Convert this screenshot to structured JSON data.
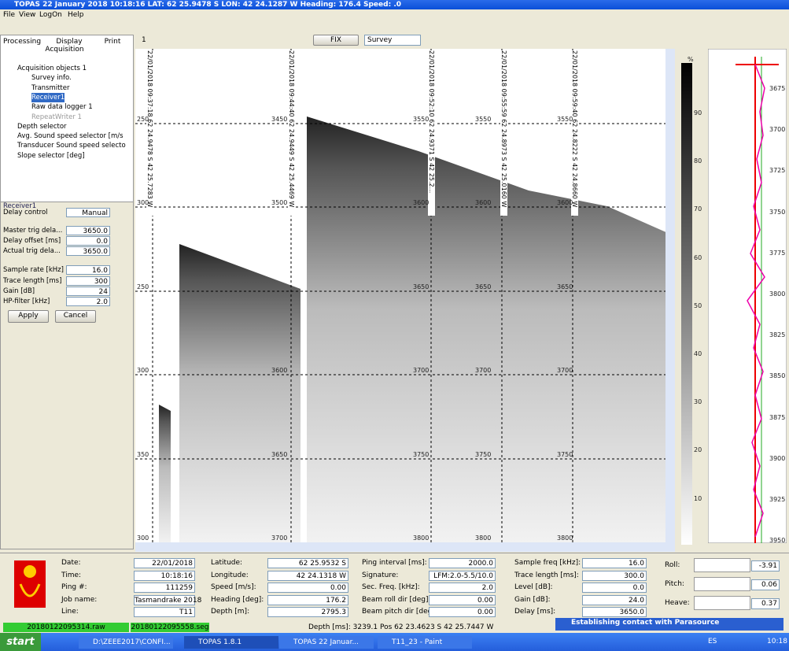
{
  "window": {
    "title": "TOPAS   22 January 2018  10:18:16   LAT: 62 25.9478 S   LON: 42 24.1287 W   Heading: 176.4   Speed: .0",
    "menu": [
      "File",
      "View",
      "LogOn",
      "Help"
    ]
  },
  "left_panel": {
    "tabs": [
      "Processing",
      "Display",
      "Print",
      "Acquisition"
    ],
    "tree": [
      "Acquisition objects 1",
      "Survey info.",
      "Transmitter",
      "Receiver1",
      "Raw data logger 1",
      "RepeatWriter 1",
      "Depth selector",
      "Avg. Sound speed selector [m/s",
      "Transducer Sound speed selecto",
      "Slope selector [deg]"
    ],
    "properties_title": "Receiver1",
    "properties": [
      {
        "label": "Delay control",
        "value": "Manual"
      },
      {
        "label": "Master trig dela...",
        "value": "3650.0"
      },
      {
        "label": "Delay offset [ms]",
        "value": "0.0"
      },
      {
        "label": "Actual trig dela...",
        "value": "3650.0"
      },
      {
        "label": "Sample rate [kHz]",
        "value": "16.0"
      },
      {
        "label": "Trace length [ms]",
        "value": "300"
      },
      {
        "label": "Gain [dB]",
        "value": "24"
      },
      {
        "label": "HP-filter [kHz]",
        "value": "2.0"
      }
    ],
    "buttons": [
      "Apply",
      "Cancel"
    ]
  },
  "toolbar": {
    "tab": "1",
    "fix": "FIX",
    "mode": "Survey"
  },
  "echogram": {
    "annotations": [
      "22/01/2018 09:37:18  62 24.9478 S  42 25.7283 W",
      "22/01/2018 09:44:40  62 24.9449 S  42 25.4469 W",
      "22/01/2018 09:52:10  62 24.9371 S  42 25.2...",
      "22/01/2018 09:55:59  62 24.8973 S  42 25.0160 W",
      "22/01/2018 09:59:40  62 24.8222 S  42 24.8660 W"
    ],
    "depth_labels": [
      [
        "250",
        "300",
        "250",
        "300",
        "350",
        "300"
      ],
      [
        "3450",
        "3500",
        "",
        "3600",
        "3650",
        "3700"
      ],
      [
        "3550",
        "3600",
        "3650",
        "3700",
        "3750",
        "3800"
      ],
      [
        "3550",
        "3600",
        "3650",
        "3700",
        "3750",
        "3800"
      ],
      [
        "3550",
        "3600",
        "3650",
        "3700",
        "3750",
        "3800"
      ]
    ],
    "scale_unit": "%",
    "scale_labels": [
      "90",
      "80",
      "70",
      "60",
      "50",
      "40",
      "30",
      "20",
      "10"
    ],
    "profile_labels": [
      "3675",
      "3700",
      "3725",
      "3750",
      "3775",
      "3800",
      "3825",
      "3850",
      "3875",
      "3900",
      "3925",
      "3950"
    ]
  },
  "info_panel": {
    "columns": [
      [
        {
          "label": "Date:",
          "value": "22/01/2018"
        },
        {
          "label": "Time:",
          "value": "10:18:16"
        },
        {
          "label": "Ping #:",
          "value": "111259"
        },
        {
          "label": "Job name:",
          "value": "Tasmandrake 2018"
        },
        {
          "label": "Line:",
          "value": "T11"
        }
      ],
      [
        {
          "label": "Latitude:",
          "value": "62 25.9532 S"
        },
        {
          "label": "Longitude:",
          "value": "42 24.1318 W"
        },
        {
          "label": "Speed [m/s]:",
          "value": "0.00"
        },
        {
          "label": "Heading [deg]:",
          "value": "176.2"
        },
        {
          "label": "Depth [m]:",
          "value": "2795.3"
        }
      ],
      [
        {
          "label": "Ping interval [ms]:",
          "value": "2000.0"
        },
        {
          "label": "Signature:",
          "value": "LFM:2.0-5.5/10.0"
        },
        {
          "label": "Sec. Freq. [kHz]:",
          "value": "2.0"
        },
        {
          "label": "Beam roll dir [deg]:",
          "value": "0.00"
        },
        {
          "label": "Beam pitch dir [deg]:",
          "value": "0.00"
        }
      ],
      [
        {
          "label": "Sample freq [kHz]:",
          "value": "16.0"
        },
        {
          "label": "Trace length [ms]:",
          "value": "300.0"
        },
        {
          "label": "Level [dB]:",
          "value": "0.0"
        },
        {
          "label": "Gain [dB]:",
          "value": "24.0"
        },
        {
          "label": "Delay [ms]:",
          "value": "3650.0"
        }
      ]
    ],
    "motion": [
      {
        "label": "Roll:",
        "value": "-3.91"
      },
      {
        "label": "Pitch:",
        "value": "0.06"
      },
      {
        "label": "Heave:",
        "value": "0.37"
      }
    ]
  },
  "status_bar": {
    "raw_file": "20180122095314.raw",
    "seg_file": "20180122095558.seg",
    "position": "Depth [ms]: 3239.1 Pos 62 23.4623 S 42 25.7447 W",
    "notification": "Establishing contact with Parasource"
  },
  "taskbar": {
    "start": "start",
    "items": [
      "D:\\ZEEE2017\\CONFI...",
      "TOPAS 1.8.1",
      "TOPAS  22 Januar...",
      "T11_23 - Paint"
    ],
    "language": "ES",
    "clock": "10:18"
  }
}
